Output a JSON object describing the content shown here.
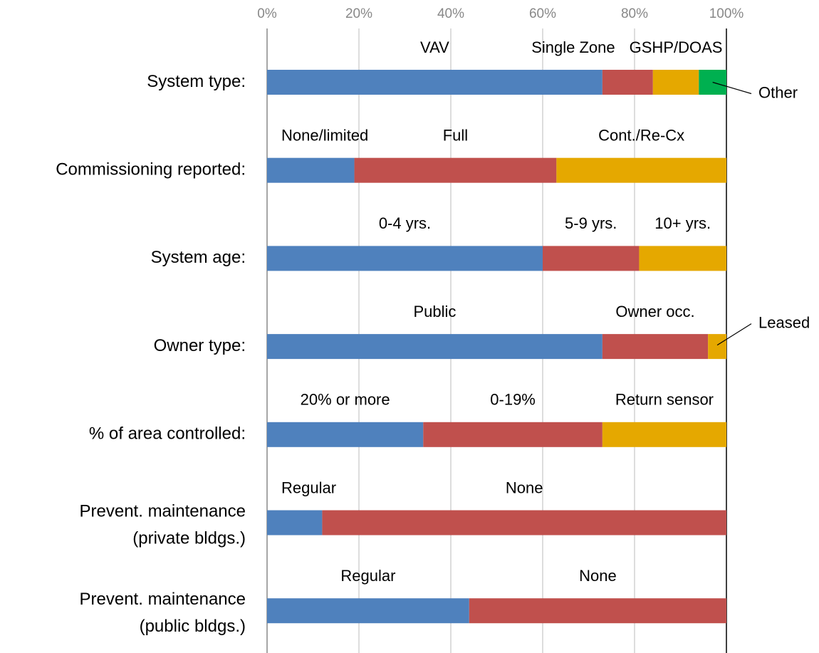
{
  "chart_data": {
    "type": "bar",
    "xlim": [
      0,
      100
    ],
    "xticks": [
      {
        "value": 0,
        "label": "0%"
      },
      {
        "value": 20,
        "label": "20%"
      },
      {
        "value": 40,
        "label": "40%"
      },
      {
        "value": 60,
        "label": "60%"
      },
      {
        "value": 80,
        "label": "80%"
      },
      {
        "value": 100,
        "label": "100%"
      }
    ],
    "grid": true,
    "rows": [
      {
        "label": [
          "System type:"
        ],
        "segments": [
          {
            "name": "VAV",
            "value": 73,
            "color": "#4f81bd"
          },
          {
            "name": "Single Zone",
            "value": 11,
            "color": "#c0504d"
          },
          {
            "name": "GSHP/DOAS",
            "value": 10,
            "color": "#e5a800"
          },
          {
            "name": "Other",
            "value": 6,
            "color": "#00b050"
          }
        ]
      },
      {
        "label": [
          "Commissioning reported:"
        ],
        "segments": [
          {
            "name": "None/limited",
            "value": 19,
            "color": "#4f81bd"
          },
          {
            "name": "Full",
            "value": 44,
            "color": "#c0504d"
          },
          {
            "name": "Cont./Re-Cx",
            "value": 37,
            "color": "#e5a800"
          }
        ]
      },
      {
        "label": [
          "System age:"
        ],
        "segments": [
          {
            "name": "0-4 yrs.",
            "value": 60,
            "color": "#4f81bd"
          },
          {
            "name": "5-9 yrs.",
            "value": 21,
            "color": "#c0504d"
          },
          {
            "name": "10+ yrs.",
            "value": 19,
            "color": "#e5a800"
          }
        ]
      },
      {
        "label": [
          "Owner type:"
        ],
        "segments": [
          {
            "name": "Public",
            "value": 73,
            "color": "#4f81bd"
          },
          {
            "name": "Owner occ.",
            "value": 23,
            "color": "#c0504d"
          },
          {
            "name": "Leased",
            "value": 4,
            "color": "#e5a800"
          }
        ]
      },
      {
        "label": [
          "% of area controlled:"
        ],
        "segments": [
          {
            "name": "20% or more",
            "value": 34,
            "color": "#4f81bd"
          },
          {
            "name": "0-19%",
            "value": 39,
            "color": "#c0504d"
          },
          {
            "name": "Return sensor",
            "value": 27,
            "color": "#e5a800"
          }
        ]
      },
      {
        "label": [
          "Prevent. maintenance",
          "(private bldgs.)"
        ],
        "segments": [
          {
            "name": "Regular",
            "value": 12,
            "color": "#4f81bd"
          },
          {
            "name": "None",
            "value": 88,
            "color": "#c0504d"
          }
        ]
      },
      {
        "label": [
          "Prevent. maintenance",
          "(public bldgs.)"
        ],
        "segments": [
          {
            "name": "Regular",
            "value": 44,
            "color": "#4f81bd"
          },
          {
            "name": "None",
            "value": 56,
            "color": "#c0504d"
          }
        ]
      }
    ]
  }
}
